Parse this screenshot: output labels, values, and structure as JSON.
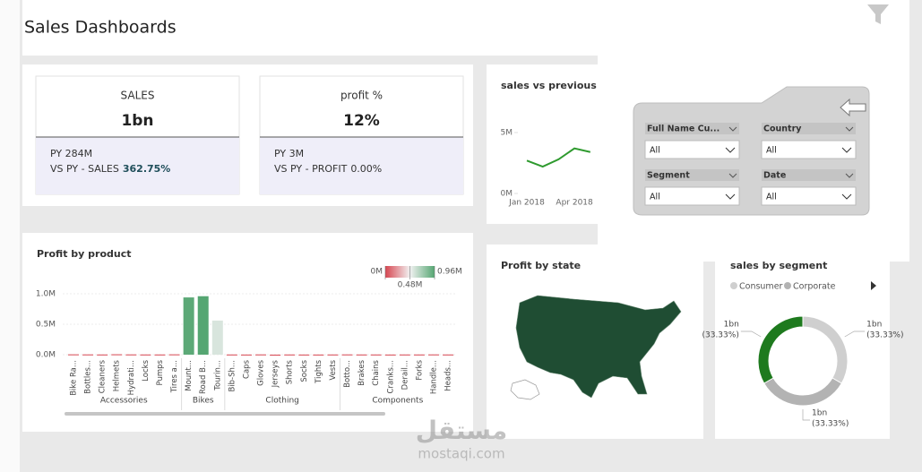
{
  "header": {
    "title": "Sales Dashboards"
  },
  "cards": [
    {
      "title": "SALES",
      "value": "1bn",
      "previous": "PY 284M",
      "comparison_label": "VS PY - SALES",
      "comparison_value": "362.75%"
    },
    {
      "title": "profit %",
      "value": "12%",
      "previous": "PY 3M",
      "comparison_label": "VS PY - PROFIT",
      "comparison_value": "0.00%"
    }
  ],
  "filters": [
    {
      "label": "Full Name Cu...",
      "value": "All"
    },
    {
      "label": "Country",
      "value": "All"
    },
    {
      "label": "Segment",
      "value": "All"
    },
    {
      "label": "Date",
      "value": "All"
    }
  ],
  "map": {
    "title": "Profit by state"
  },
  "watermark": {
    "arabic": "مستقل",
    "latin": "mostaqi.com"
  },
  "chart_data": [
    {
      "type": "line",
      "title": "sales vs previous c",
      "categories": [
        "Jan 2018",
        null,
        null,
        "Apr 2018",
        null
      ],
      "values": [
        2700000,
        2200000,
        2800000,
        3700000,
        3400000
      ],
      "color": "#2e9a2e",
      "ylim": [
        0,
        6000000
      ],
      "yticks": [
        {
          "value": 0,
          "label": "0M"
        },
        {
          "value": 5000000,
          "label": "5M"
        }
      ]
    },
    {
      "type": "bar",
      "title": "Profit by product",
      "groups": [
        {
          "name": "Accessories",
          "categories": [
            "Bike Ra...",
            "Bottles...",
            "Cleaners",
            "Helmets",
            "Hydrati...",
            "Locks",
            "Pumps",
            "Tires a..."
          ],
          "values": [
            5000,
            4000,
            3000,
            6000,
            4000,
            3000,
            3000,
            5000
          ]
        },
        {
          "name": "Bikes",
          "categories": [
            "Mount...",
            "Road B...",
            "Tourin..."
          ],
          "values": [
            940000,
            960000,
            560000
          ]
        },
        {
          "name": "Clothing",
          "categories": [
            "Bib-Sh...",
            "Caps",
            "Gloves",
            "Jerseys",
            "Shorts",
            "Socks",
            "Tights",
            "Vests"
          ],
          "values": [
            3000,
            2000,
            4000,
            -8000,
            3000,
            2000,
            2000,
            3000
          ]
        },
        {
          "name": "Components",
          "categories": [
            "Botto...",
            "Brakes",
            "Chains",
            "Cranks...",
            "Derail...",
            "Forks",
            "Handle...",
            "Heads..."
          ],
          "values": [
            4000,
            3000,
            3000,
            2000,
            3000,
            3000,
            4000,
            3000
          ]
        }
      ],
      "ylim": [
        -30000,
        1100000
      ],
      "yticks": [
        {
          "value": 0,
          "label": "0.0M"
        },
        {
          "value": 500000,
          "label": "0.5M"
        },
        {
          "value": 1000000,
          "label": "1.0M"
        }
      ],
      "color_scale": {
        "ticks": [
          {
            "value": 0,
            "label": "0M"
          },
          {
            "value": 480000,
            "label": "0.48M"
          },
          {
            "value": 960000,
            "label": "0.96M"
          }
        ],
        "colors": [
          "#d64550",
          "#f2f2f2",
          "#55a672"
        ]
      }
    },
    {
      "type": "pie",
      "title": "sales by segment",
      "donut": true,
      "categories": [
        "Consumer",
        "Corporate",
        null
      ],
      "values": [
        33.33,
        33.33,
        33.33
      ],
      "value_labels": [
        "(33.33%)",
        "(33.33%)",
        "(33.33%)"
      ],
      "amounts": [
        1000000000,
        1000000000,
        1000000000
      ],
      "amount_labels": [
        "1bn",
        "1bn",
        "1bn"
      ],
      "colors": [
        "#cfcfcf",
        "#b3b3b3",
        "#1e7a1e"
      ]
    }
  ]
}
